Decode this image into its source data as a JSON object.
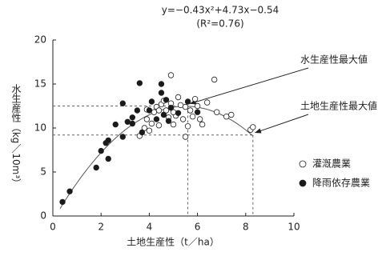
{
  "chart_data": {
    "type": "scatter",
    "title": "y=−0.43x²+4.73x−0.54",
    "subtitle": "(R²=0.76)",
    "x_label": "土地生産性（t／ha）",
    "y_label": "水生産性（kg／10m³）",
    "xlim": [
      0,
      10
    ],
    "xticks": [
      0,
      2,
      4,
      6,
      8,
      10
    ],
    "ylim": [
      0,
      20
    ],
    "yticks": [
      0,
      5,
      10,
      15,
      20
    ],
    "grid": false,
    "legend": "right",
    "fit": {
      "a": -0.43,
      "b": 4.73,
      "c": -0.54,
      "x_range": [
        0.3,
        8.3
      ],
      "color": "#555555"
    },
    "annotations": [
      {
        "text": "水生産性最大値",
        "x": 5.6,
        "y": 12.5
      },
      {
        "text": "土地生産性最大値",
        "x": 8.3,
        "y": 9.2
      }
    ],
    "series": [
      {
        "name": "灌漑農業",
        "color": "#ffffff",
        "x": [
          3.6,
          3.8,
          3.9,
          4.0,
          4.1,
          4.2,
          4.3,
          4.4,
          4.5,
          4.6,
          4.7,
          4.8,
          4.9,
          4.9,
          5.0,
          5.1,
          5.2,
          5.3,
          5.4,
          5.5,
          5.5,
          5.6,
          5.7,
          5.8,
          5.9,
          6.0,
          6.1,
          6.2,
          6.4,
          6.7,
          6.8,
          7.2,
          7.4,
          8.2,
          8.3,
          5.0,
          4.4,
          3.9
        ],
        "values": [
          9.1,
          10.0,
          11.0,
          9.7,
          10.5,
          11.8,
          12.4,
          10.3,
          12.7,
          13.1,
          12.0,
          11.2,
          16.0,
          12.8,
          10.4,
          11.4,
          13.5,
          12.6,
          11.0,
          9.0,
          12.4,
          10.2,
          12.0,
          11.3,
          13.3,
          12.5,
          11.0,
          10.4,
          12.9,
          15.5,
          11.8,
          11.3,
          11.5,
          9.8,
          10.1,
          11.8,
          12.0,
          12.1
        ]
      },
      {
        "name": "降雨依存農業",
        "color": "#1a1a1a",
        "x": [
          0.4,
          0.7,
          1.8,
          2.0,
          2.2,
          2.3,
          2.3,
          2.6,
          2.9,
          2.9,
          3.1,
          3.3,
          3.5,
          3.6,
          3.7,
          4.0,
          4.1,
          4.3,
          4.5,
          4.5,
          4.7,
          4.8,
          4.9,
          5.2,
          5.6,
          6.0,
          3.3,
          4.6
        ],
        "values": [
          1.6,
          2.8,
          5.5,
          7.4,
          8.3,
          8.6,
          6.5,
          10.4,
          9.0,
          12.8,
          10.7,
          10.5,
          12.0,
          15.1,
          9.5,
          12.0,
          13.0,
          11.0,
          15.0,
          14.0,
          13.2,
          10.8,
          12.3,
          11.7,
          13.0,
          11.8,
          11.2,
          11.5
        ]
      }
    ]
  }
}
